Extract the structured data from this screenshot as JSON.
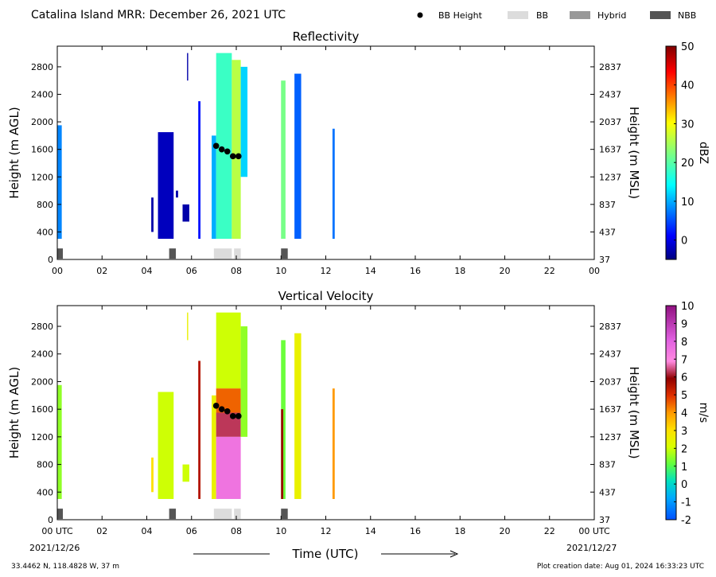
{
  "header": {
    "title": "Catalina Island MRR:  December 26, 2021 UTC",
    "legend": [
      {
        "label": "BB Height",
        "kind": "dot",
        "color": "#000000"
      },
      {
        "label": "BB",
        "kind": "box",
        "color": "#dcdcdc"
      },
      {
        "label": "Hybrid",
        "kind": "box",
        "color": "#999999"
      },
      {
        "label": "NBB",
        "kind": "box",
        "color": "#555555"
      }
    ]
  },
  "chart_data": [
    {
      "type": "heatmap",
      "title": "Reflectivity",
      "ylabel": "Height (m AGL)",
      "ylabel_right": "Height (m MSL)",
      "xlim": [
        0,
        24
      ],
      "ylim": [
        0,
        3100
      ],
      "yticks": [
        0,
        400,
        800,
        1200,
        1600,
        2000,
        2400,
        2800
      ],
      "yticks_right": [
        "37",
        "437",
        "837",
        "1237",
        "1637",
        "2037",
        "2437",
        "2837"
      ],
      "xticks": [
        "00",
        "02",
        "04",
        "06",
        "08",
        "10",
        "12",
        "14",
        "16",
        "18",
        "20",
        "22",
        "00"
      ],
      "colorbar": {
        "label": "dBZ",
        "min": -5,
        "max": 50,
        "ticks": [
          "0",
          "10",
          "20",
          "30",
          "40",
          "50"
        ],
        "tick_values": [
          0,
          10,
          20,
          30,
          40,
          50
        ],
        "colormap": "jet"
      },
      "columns": [
        {
          "t0": 0.0,
          "t1": 0.2,
          "bot": 300,
          "top": 1950,
          "val": 8
        },
        {
          "t0": 4.2,
          "t1": 4.3,
          "bot": 400,
          "top": 900,
          "val": -3
        },
        {
          "t0": 4.5,
          "t1": 5.2,
          "bot": 300,
          "top": 1850,
          "val": -2
        },
        {
          "t0": 5.3,
          "t1": 5.4,
          "bot": 900,
          "top": 1000,
          "val": -3
        },
        {
          "t0": 5.6,
          "t1": 5.9,
          "bot": 550,
          "top": 800,
          "val": -3
        },
        {
          "t0": 5.8,
          "t1": 5.85,
          "bot": 2600,
          "top": 3000,
          "val": -3
        },
        {
          "t0": 6.3,
          "t1": 6.4,
          "bot": 300,
          "top": 2300,
          "val": 2
        },
        {
          "t0": 6.9,
          "t1": 7.1,
          "bot": 300,
          "top": 1800,
          "val": 10
        },
        {
          "t0": 7.1,
          "t1": 7.8,
          "bot": 300,
          "top": 3000,
          "val": 18
        },
        {
          "t0": 7.8,
          "t1": 8.2,
          "bot": 300,
          "top": 2900,
          "val": 26
        },
        {
          "t0": 8.2,
          "t1": 8.5,
          "bot": 1200,
          "top": 2800,
          "val": 12
        },
        {
          "t0": 10.0,
          "t1": 10.2,
          "bot": 300,
          "top": 2600,
          "val": 22
        },
        {
          "t0": 10.6,
          "t1": 10.9,
          "bot": 300,
          "top": 2700,
          "val": 6
        },
        {
          "t0": 12.3,
          "t1": 12.4,
          "bot": 300,
          "top": 1900,
          "val": 7
        }
      ],
      "bb_height": {
        "t": [
          7.1,
          7.35,
          7.6,
          7.85,
          8.1
        ],
        "h": [
          1650,
          1600,
          1570,
          1500,
          1500
        ]
      },
      "bb_flags": [
        {
          "t0": 0.0,
          "t1": 0.25,
          "kind": "NBB"
        },
        {
          "t0": 5.0,
          "t1": 5.3,
          "kind": "NBB"
        },
        {
          "t0": 7.0,
          "t1": 7.8,
          "kind": "BB"
        },
        {
          "t0": 7.9,
          "t1": 8.2,
          "kind": "BB"
        },
        {
          "t0": 10.0,
          "t1": 10.3,
          "kind": "NBB"
        }
      ]
    },
    {
      "type": "heatmap",
      "title": "Vertical Velocity",
      "ylabel": "Height (m AGL)",
      "ylabel_right": "Height (m MSL)",
      "xlim": [
        0,
        24
      ],
      "ylim": [
        0,
        3100
      ],
      "yticks": [
        0,
        400,
        800,
        1200,
        1600,
        2000,
        2400,
        2800
      ],
      "yticks_right": [
        "37",
        "437",
        "837",
        "1237",
        "1637",
        "2037",
        "2437",
        "2837"
      ],
      "xticks": [
        "00 UTC",
        "02",
        "04",
        "06",
        "08",
        "10",
        "12",
        "14",
        "16",
        "18",
        "20",
        "22",
        "00 UTC"
      ],
      "date_left": "2021/12/26",
      "date_right": "2021/12/27",
      "xlabel": "Time (UTC)",
      "colorbar": {
        "label": "m/s",
        "min": -2,
        "max": 10,
        "ticks": [
          "-2",
          "-1",
          "0",
          "1",
          "2",
          "3",
          "4",
          "5",
          "6",
          "7",
          "8",
          "9",
          "10"
        ],
        "tick_values": [
          -2,
          -1,
          0,
          1,
          2,
          3,
          4,
          5,
          6,
          7,
          8,
          9,
          10
        ],
        "colormap": "velocity"
      },
      "columns": [
        {
          "t0": 0.0,
          "t1": 0.2,
          "bot": 300,
          "top": 1950,
          "val": 1.5
        },
        {
          "t0": 4.2,
          "t1": 4.3,
          "bot": 400,
          "top": 900,
          "val": 3
        },
        {
          "t0": 4.5,
          "t1": 5.2,
          "bot": 300,
          "top": 1850,
          "val": 2
        },
        {
          "t0": 5.6,
          "t1": 5.9,
          "bot": 550,
          "top": 800,
          "val": 2
        },
        {
          "t0": 5.8,
          "t1": 5.85,
          "bot": 2600,
          "top": 3000,
          "val": 2.5
        },
        {
          "t0": 6.3,
          "t1": 6.4,
          "bot": 300,
          "top": 2300,
          "val": 5.5
        },
        {
          "t0": 6.9,
          "t1": 7.1,
          "bot": 300,
          "top": 1800,
          "val": 2.5
        },
        {
          "t0": 7.1,
          "t1": 8.2,
          "bot": 1900,
          "top": 3000,
          "val": 2
        },
        {
          "t0": 7.1,
          "t1": 8.2,
          "bot": 1550,
          "top": 1900,
          "val": 4.5
        },
        {
          "t0": 7.1,
          "t1": 8.2,
          "bot": 1200,
          "top": 1550,
          "val": 6.3
        },
        {
          "t0": 7.1,
          "t1": 8.2,
          "bot": 300,
          "top": 1200,
          "val": 7.5
        },
        {
          "t0": 8.2,
          "t1": 8.5,
          "bot": 1200,
          "top": 2800,
          "val": 1.5
        },
        {
          "t0": 10.0,
          "t1": 10.2,
          "bot": 300,
          "top": 2600,
          "val": 1.2
        },
        {
          "t0": 10.0,
          "t1": 10.1,
          "bot": 300,
          "top": 1600,
          "val": 5.8
        },
        {
          "t0": 10.6,
          "t1": 10.9,
          "bot": 300,
          "top": 2700,
          "val": 2.5
        },
        {
          "t0": 12.3,
          "t1": 12.4,
          "bot": 300,
          "top": 1900,
          "val": 4
        }
      ],
      "bb_height": {
        "t": [
          7.1,
          7.35,
          7.6,
          7.85,
          8.1
        ],
        "h": [
          1650,
          1600,
          1570,
          1500,
          1500
        ]
      },
      "bb_flags": [
        {
          "t0": 0.0,
          "t1": 0.25,
          "kind": "NBB"
        },
        {
          "t0": 5.0,
          "t1": 5.3,
          "kind": "NBB"
        },
        {
          "t0": 7.0,
          "t1": 7.8,
          "kind": "BB"
        },
        {
          "t0": 7.9,
          "t1": 8.2,
          "kind": "BB"
        },
        {
          "t0": 10.0,
          "t1": 10.3,
          "kind": "NBB"
        }
      ]
    }
  ],
  "footer": {
    "location": "33.4462 N, 118.4828 W, 37 m",
    "creation": "Plot creation date: Aug 01, 2024 16:33:23 UTC"
  }
}
